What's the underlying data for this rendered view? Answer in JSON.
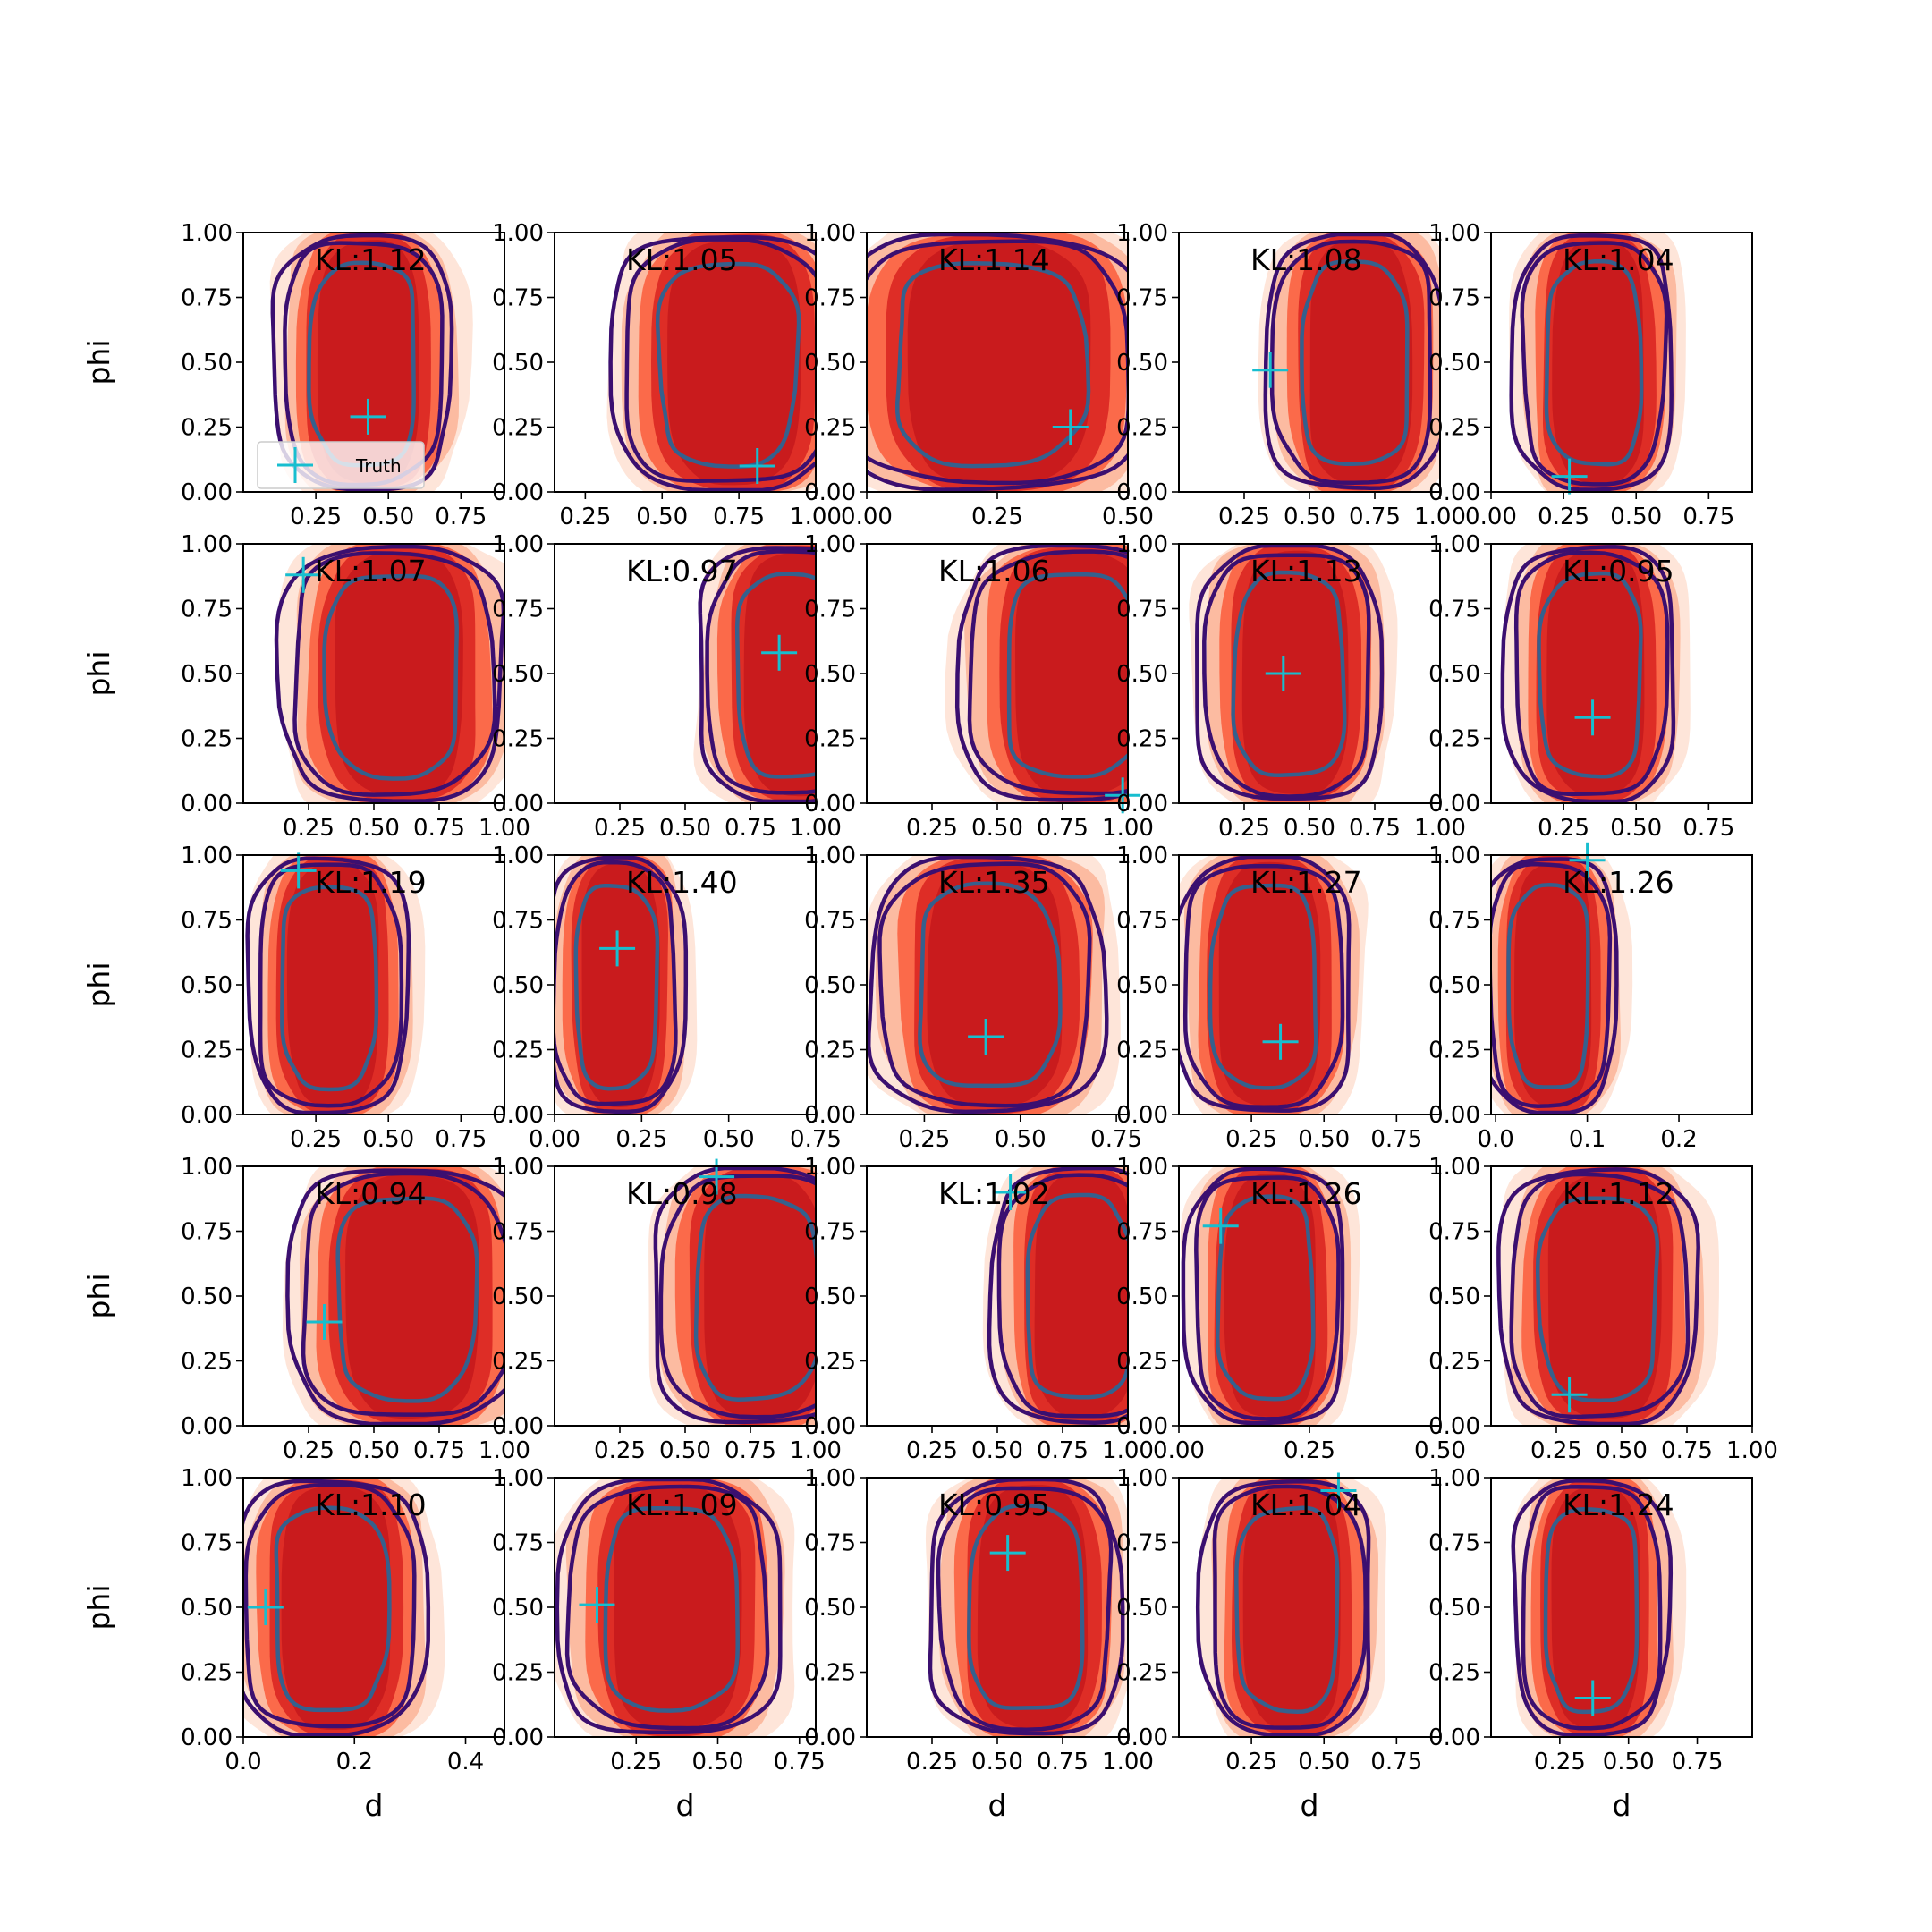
{
  "chart_data": {
    "type": "contour-grid",
    "rows": 5,
    "cols": 5,
    "xlabel": "d",
    "ylabel": "phi",
    "colors": {
      "fill_levels": [
        "#fee5d9",
        "#fcbba1",
        "#fb6a4a",
        "#de2d26",
        "#c91b1d"
      ],
      "outer_contour": "#3b0f70",
      "inner_contour": "#35608d",
      "truth_marker": "#17becf"
    },
    "legend": {
      "label": "Truth",
      "panel": 0,
      "placement": "lower-left"
    },
    "panels": [
      {
        "kl": "KL:1.12",
        "ylim": [
          0,
          1
        ],
        "y_ticks": [
          "0.00",
          "0.25",
          "0.50",
          "0.75",
          "1.00"
        ],
        "xlim": [
          0.0,
          0.9
        ],
        "x_ticks": [
          0.25,
          0.5,
          0.75
        ],
        "x_tick_labels": [
          "0.25",
          "0.50",
          "0.75"
        ],
        "center": 0.42,
        "width": 0.5,
        "truth": [
          0.43,
          0.29
        ]
      },
      {
        "kl": "KL:1.05",
        "ylim": [
          0,
          1
        ],
        "y_ticks": [
          "0.00",
          "0.25",
          "0.50",
          "0.75",
          "1.00"
        ],
        "xlim": [
          0.15,
          1.0
        ],
        "x_ticks": [
          0.25,
          0.5,
          0.75,
          1.0
        ],
        "x_tick_labels": [
          "0.25",
          "0.50",
          "0.75",
          "1.00"
        ],
        "center": 0.72,
        "width": 0.62,
        "truth": [
          0.81,
          0.1
        ]
      },
      {
        "kl": "KL:1.14",
        "ylim": [
          0,
          1
        ],
        "y_ticks": [
          "0.00",
          "0.25",
          "0.50",
          "0.75",
          "1.00"
        ],
        "xlim": [
          0.0,
          0.5
        ],
        "x_ticks": [
          0.0,
          0.25,
          0.5
        ],
        "x_tick_labels": [
          "0.00",
          "0.25",
          "0.50"
        ],
        "center": 0.24,
        "width": 0.5,
        "truth": [
          0.39,
          0.25
        ]
      },
      {
        "kl": "KL:1.08",
        "ylim": [
          0,
          1
        ],
        "y_ticks": [
          "0.00",
          "0.25",
          "0.50",
          "0.75",
          "1.00"
        ],
        "xlim": [
          0.0,
          1.0
        ],
        "x_ticks": [
          0.25,
          0.5,
          0.75,
          1.0
        ],
        "x_tick_labels": [
          "0.25",
          "0.50",
          "0.75",
          "1.00"
        ],
        "center": 0.68,
        "width": 0.56,
        "truth": [
          0.35,
          0.47
        ]
      },
      {
        "kl": "KL:1.04",
        "ylim": [
          0,
          1
        ],
        "y_ticks": [
          "0.00",
          "0.25",
          "0.50",
          "0.75",
          "1.00"
        ],
        "xlim": [
          0.0,
          0.9
        ],
        "x_ticks": [
          0.0,
          0.25,
          0.5,
          0.75
        ],
        "x_tick_labels": [
          "0.00",
          "0.25",
          "0.50",
          "0.75"
        ],
        "center": 0.36,
        "width": 0.45,
        "truth": [
          0.27,
          0.06
        ]
      },
      {
        "kl": "KL:1.07",
        "ylim": [
          0,
          1
        ],
        "y_ticks": [
          "0.00",
          "0.25",
          "0.50",
          "0.75",
          "1.00"
        ],
        "xlim": [
          0.0,
          1.0
        ],
        "x_ticks": [
          0.25,
          0.5,
          0.75,
          1.0
        ],
        "x_tick_labels": [
          "0.25",
          "0.50",
          "0.75",
          "1.00"
        ],
        "center": 0.58,
        "width": 0.7,
        "truth": [
          0.23,
          0.88
        ]
      },
      {
        "kl": "KL:0.97",
        "ylim": [
          0,
          1
        ],
        "y_ticks": [
          "0.00",
          "0.25",
          "0.50",
          "0.75",
          "1.00"
        ],
        "xlim": [
          0.0,
          1.0
        ],
        "x_ticks": [
          0.25,
          0.5,
          0.75,
          1.0
        ],
        "x_tick_labels": [
          "0.25",
          "0.50",
          "0.75",
          "1.00"
        ],
        "center": 0.92,
        "width": 0.6,
        "truth": [
          0.86,
          0.58
        ]
      },
      {
        "kl": "KL:1.06",
        "ylim": [
          0,
          1
        ],
        "y_ticks": [
          "0.00",
          "0.25",
          "0.50",
          "0.75",
          "1.00"
        ],
        "xlim": [
          0.0,
          1.0
        ],
        "x_ticks": [
          0.25,
          0.5,
          0.75,
          1.0
        ],
        "x_tick_labels": [
          "0.25",
          "0.50",
          "0.75",
          "1.00"
        ],
        "center": 0.8,
        "width": 0.72,
        "truth": [
          0.98,
          0.03
        ]
      },
      {
        "kl": "KL:1.13",
        "ylim": [
          0,
          1
        ],
        "y_ticks": [
          "0.00",
          "0.25",
          "0.50",
          "0.75",
          "1.00"
        ],
        "xlim": [
          0.0,
          1.0
        ],
        "x_ticks": [
          0.25,
          0.5,
          0.75,
          1.0
        ],
        "x_tick_labels": [
          "0.25",
          "0.50",
          "0.75",
          "1.00"
        ],
        "center": 0.43,
        "width": 0.58,
        "truth": [
          0.4,
          0.5
        ]
      },
      {
        "kl": "KL:0.95",
        "ylim": [
          0,
          1
        ],
        "y_ticks": [
          "0.00",
          "0.25",
          "0.50",
          "0.75",
          "1.00"
        ],
        "xlim": [
          0.0,
          0.9
        ],
        "x_ticks": [
          0.25,
          0.5,
          0.75
        ],
        "x_tick_labels": [
          "0.25",
          "0.50",
          "0.75"
        ],
        "center": 0.35,
        "width": 0.48,
        "truth": [
          0.35,
          0.33
        ]
      },
      {
        "kl": "KL:1.19",
        "ylim": [
          0,
          1
        ],
        "y_ticks": [
          "0.00",
          "0.25",
          "0.50",
          "0.75",
          "1.00"
        ],
        "xlim": [
          0.0,
          0.9
        ],
        "x_ticks": [
          0.25,
          0.5,
          0.75
        ],
        "x_tick_labels": [
          "0.25",
          "0.50",
          "0.75"
        ],
        "center": 0.3,
        "width": 0.45,
        "truth": [
          0.19,
          0.94
        ]
      },
      {
        "kl": "KL:1.40",
        "ylim": [
          0,
          1
        ],
        "y_ticks": [
          "0.00",
          "0.25",
          "0.50",
          "0.75",
          "1.00"
        ],
        "xlim": [
          0.0,
          0.75
        ],
        "x_ticks": [
          0.0,
          0.25,
          0.5,
          0.75
        ],
        "x_tick_labels": [
          "0.00",
          "0.25",
          "0.50",
          "0.75"
        ],
        "center": 0.18,
        "width": 0.32,
        "truth": [
          0.18,
          0.64
        ]
      },
      {
        "kl": "KL:1.35",
        "ylim": [
          0,
          1
        ],
        "y_ticks": [
          "0.00",
          "0.25",
          "0.50",
          "0.75",
          "1.00"
        ],
        "xlim": [
          0.1,
          0.78
        ],
        "x_ticks": [
          0.25,
          0.5,
          0.75
        ],
        "x_tick_labels": [
          "0.25",
          "0.50",
          "0.75"
        ],
        "center": 0.42,
        "width": 0.5,
        "truth": [
          0.41,
          0.3
        ]
      },
      {
        "kl": "KL:1.27",
        "ylim": [
          0,
          1
        ],
        "y_ticks": [
          "0.00",
          "0.25",
          "0.50",
          "0.75",
          "1.00"
        ],
        "xlim": [
          0.0,
          0.9
        ],
        "x_ticks": [
          0.25,
          0.5,
          0.75
        ],
        "x_tick_labels": [
          "0.25",
          "0.50",
          "0.75"
        ],
        "center": 0.3,
        "width": 0.5,
        "truth": [
          0.35,
          0.28
        ]
      },
      {
        "kl": "KL:1.26",
        "ylim": [
          0,
          1
        ],
        "y_ticks": [
          "0.00",
          "0.25",
          "0.50",
          "0.75",
          "1.00"
        ],
        "xlim": [
          -0.005,
          0.28
        ],
        "x_ticks": [
          0.0,
          0.1,
          0.2
        ],
        "x_tick_labels": [
          "0.0",
          "0.1",
          "0.2"
        ],
        "center": 0.06,
        "width": 0.12,
        "truth": [
          0.1,
          0.98
        ]
      },
      {
        "kl": "KL:0.94",
        "ylim": [
          0,
          1
        ],
        "y_ticks": [
          "0.00",
          "0.25",
          "0.50",
          "0.75",
          "1.00"
        ],
        "xlim": [
          0.0,
          1.0
        ],
        "x_ticks": [
          0.25,
          0.5,
          0.75,
          1.0
        ],
        "x_tick_labels": [
          "0.25",
          "0.50",
          "0.75",
          "1.00"
        ],
        "center": 0.63,
        "width": 0.73,
        "truth": [
          0.31,
          0.4
        ]
      },
      {
        "kl": "KL:0.98",
        "ylim": [
          0,
          1
        ],
        "y_ticks": [
          "0.00",
          "0.25",
          "0.50",
          "0.75",
          "1.00"
        ],
        "xlim": [
          0.0,
          1.0
        ],
        "x_ticks": [
          0.25,
          0.5,
          0.75,
          1.0
        ],
        "x_tick_labels": [
          "0.25",
          "0.50",
          "0.75",
          "1.00"
        ],
        "center": 0.78,
        "width": 0.65,
        "truth": [
          0.62,
          0.96
        ]
      },
      {
        "kl": "KL:1.02",
        "ylim": [
          0,
          1
        ],
        "y_ticks": [
          "0.00",
          "0.25",
          "0.50",
          "0.75",
          "1.00"
        ],
        "xlim": [
          0.0,
          1.0
        ],
        "x_ticks": [
          0.25,
          0.5,
          0.75,
          1.0
        ],
        "x_tick_labels": [
          "0.25",
          "0.50",
          "0.75",
          "1.00"
        ],
        "center": 0.82,
        "width": 0.55,
        "truth": [
          0.55,
          0.9
        ]
      },
      {
        "kl": "KL:1.26",
        "ylim": [
          0,
          1
        ],
        "y_ticks": [
          "0.00",
          "0.25",
          "0.50",
          "0.75",
          "1.00"
        ],
        "xlim": [
          0.0,
          0.5
        ],
        "x_ticks": [
          0.0,
          0.25,
          0.5
        ],
        "x_tick_labels": [
          "0.00",
          "0.25",
          "0.50"
        ],
        "center": 0.17,
        "width": 0.25,
        "truth": [
          0.08,
          0.77
        ]
      },
      {
        "kl": "KL:1.12",
        "ylim": [
          0,
          1
        ],
        "y_ticks": [
          "0.00",
          "0.25",
          "0.50",
          "0.75",
          "1.00"
        ],
        "xlim": [
          0.0,
          1.0
        ],
        "x_ticks": [
          0.25,
          0.5,
          0.75,
          1.0
        ],
        "x_tick_labels": [
          "0.25",
          "0.50",
          "0.75",
          "1.00"
        ],
        "center": 0.42,
        "width": 0.62,
        "truth": [
          0.3,
          0.12
        ]
      },
      {
        "kl": "KL:1.10",
        "ylim": [
          0,
          1
        ],
        "y_ticks": [
          "0.00",
          "0.25",
          "0.50",
          "0.75",
          "1.00"
        ],
        "xlim": [
          0.0,
          0.47
        ],
        "x_ticks": [
          0.0,
          0.2,
          0.4
        ],
        "x_tick_labels": [
          "0.0",
          "0.2",
          "0.4"
        ],
        "center": 0.16,
        "width": 0.28,
        "truth": [
          0.04,
          0.5
        ]
      },
      {
        "kl": "KL:1.09",
        "ylim": [
          0,
          1
        ],
        "y_ticks": [
          "0.00",
          "0.25",
          "0.50",
          "0.75",
          "1.00"
        ],
        "xlim": [
          0.0,
          0.8
        ],
        "x_ticks": [
          0.25,
          0.5,
          0.75
        ],
        "x_tick_labels": [
          "0.25",
          "0.50",
          "0.75"
        ],
        "center": 0.36,
        "width": 0.56,
        "truth": [
          0.13,
          0.51
        ]
      },
      {
        "kl": "KL:0.95",
        "ylim": [
          0,
          1
        ],
        "y_ticks": [
          "0.00",
          "0.25",
          "0.50",
          "0.75",
          "1.00"
        ],
        "xlim": [
          0.0,
          1.0
        ],
        "x_ticks": [
          0.25,
          0.5,
          0.75,
          1.0
        ],
        "x_tick_labels": [
          "0.25",
          "0.50",
          "0.75",
          "1.00"
        ],
        "center": 0.62,
        "width": 0.6,
        "truth": [
          0.54,
          0.71
        ]
      },
      {
        "kl": "KL:1.04",
        "ylim": [
          0,
          1
        ],
        "y_ticks": [
          "0.00",
          "0.25",
          "0.50",
          "0.75",
          "1.00"
        ],
        "xlim": [
          0.0,
          0.9
        ],
        "x_ticks": [
          0.25,
          0.5,
          0.75
        ],
        "x_tick_labels": [
          "0.25",
          "0.50",
          "0.75"
        ],
        "center": 0.38,
        "width": 0.48,
        "truth": [
          0.55,
          0.95
        ]
      },
      {
        "kl": "KL:1.24",
        "ylim": [
          0,
          1
        ],
        "y_ticks": [
          "0.00",
          "0.25",
          "0.50",
          "0.75",
          "1.00"
        ],
        "xlim": [
          0.0,
          0.95
        ],
        "x_ticks": [
          0.25,
          0.5,
          0.75
        ],
        "x_tick_labels": [
          "0.25",
          "0.50",
          "0.75"
        ],
        "center": 0.37,
        "width": 0.46,
        "truth": [
          0.37,
          0.15
        ]
      }
    ]
  }
}
